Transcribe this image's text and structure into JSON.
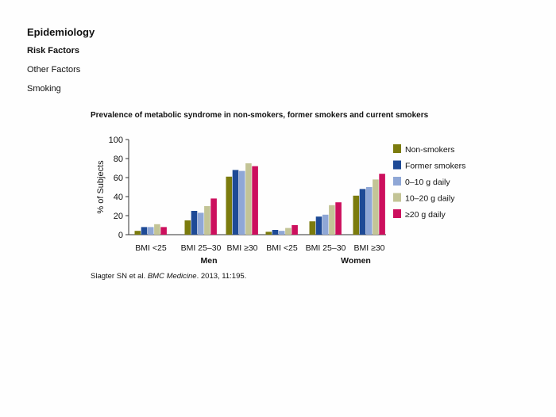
{
  "header": {
    "title": "Epidemiology",
    "subtitle": "Risk Factors",
    "item1": "Other Factors",
    "item2": "Smoking"
  },
  "chart_data": {
    "type": "bar",
    "title": "Prevalence of metabolic syndrome in non-smokers, former smokers and current smokers",
    "ylabel": "% of Subjects",
    "xlabel": "",
    "ylim": [
      0,
      100
    ],
    "yticks": [
      0,
      20,
      40,
      60,
      80,
      100
    ],
    "legend_position": "right",
    "groups": [
      {
        "name": "Men",
        "categories": [
          "BMI <25",
          "BMI 25–30",
          "BMI ≥30"
        ]
      },
      {
        "name": "Women",
        "categories": [
          "BMI <25",
          "BMI 25–30",
          "BMI ≥30"
        ]
      }
    ],
    "series": [
      {
        "name": "Non-smokers",
        "color": "#7b7b0d",
        "values": [
          4,
          15,
          61,
          3,
          14,
          41
        ]
      },
      {
        "name": "Former smokers",
        "color": "#1e4a96",
        "values": [
          8,
          25,
          68,
          5,
          19,
          48
        ]
      },
      {
        "name": "0–10 g daily",
        "color": "#8fa7d6",
        "values": [
          8,
          23,
          67,
          4,
          21,
          50
        ]
      },
      {
        "name": "10–20 g daily",
        "color": "#c3c496",
        "values": [
          11,
          30,
          75,
          7,
          31,
          58
        ]
      },
      {
        "name": "≥20 g daily",
        "color": "#cc0f5d",
        "values": [
          8,
          38,
          72,
          10,
          34,
          64
        ]
      }
    ]
  },
  "citation": {
    "authors": "Slagter SN et al.",
    "journal": "BMC Medicine",
    "details": ". 2013, 11:195."
  }
}
